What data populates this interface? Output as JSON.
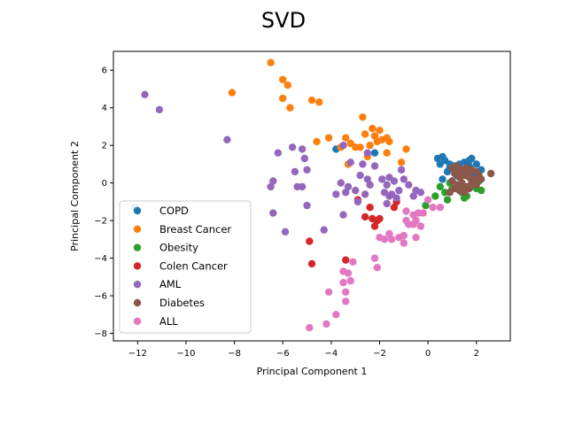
{
  "chart_data": {
    "type": "scatter",
    "title": "SVD",
    "xlabel": "Principal Component 1",
    "ylabel": "Principal Component 2",
    "xlim": [
      -13.0,
      3.4
    ],
    "ylim": [
      -8.4,
      7.0
    ],
    "xticks": [
      -12,
      -10,
      -8,
      -6,
      -4,
      -2,
      0,
      2
    ],
    "yticks": [
      -8,
      -6,
      -4,
      -2,
      0,
      2,
      4,
      6
    ],
    "grid": false,
    "legend_position": "lower-left",
    "series": [
      {
        "name": "COPD",
        "color": "#1f77b4",
        "points": [
          [
            -3.8,
            1.8
          ],
          [
            -2.2,
            1.6
          ],
          [
            0.4,
            1.3
          ],
          [
            0.6,
            1.4
          ],
          [
            0.7,
            1.2
          ],
          [
            0.5,
            1.0
          ],
          [
            0.9,
            1.0
          ],
          [
            1.1,
            0.9
          ],
          [
            1.3,
            1.0
          ],
          [
            1.5,
            1.1
          ],
          [
            1.7,
            1.2
          ],
          [
            1.8,
            1.3
          ],
          [
            2.0,
            1.0
          ],
          [
            2.2,
            0.7
          ],
          [
            1.6,
            0.8
          ],
          [
            0.8,
            0.6
          ],
          [
            1.9,
            0.5
          ],
          [
            2.1,
            0.3
          ],
          [
            1.2,
            0.4
          ],
          [
            1.4,
            0.6
          ],
          [
            0.6,
            0.2
          ],
          [
            1.0,
            0.1
          ],
          [
            1.7,
            0.9
          ],
          [
            1.5,
            0.5
          ],
          [
            0.9,
            0.8
          ]
        ]
      },
      {
        "name": "Breast Cancer",
        "color": "#ff7f0e",
        "points": [
          [
            -6.5,
            6.4
          ],
          [
            -8.1,
            4.8
          ],
          [
            -6.0,
            5.5
          ],
          [
            -5.8,
            5.2
          ],
          [
            -6.0,
            4.5
          ],
          [
            -5.7,
            4.0
          ],
          [
            -4.8,
            4.4
          ],
          [
            -4.5,
            4.3
          ],
          [
            -2.7,
            3.5
          ],
          [
            -2.3,
            2.9
          ],
          [
            -2.0,
            2.8
          ],
          [
            -2.2,
            2.5
          ],
          [
            -1.9,
            2.3
          ],
          [
            -1.7,
            2.4
          ],
          [
            -2.4,
            2.0
          ],
          [
            -2.6,
            2.6
          ],
          [
            -3.4,
            2.4
          ],
          [
            -3.2,
            2.1
          ],
          [
            -3.6,
            1.9
          ],
          [
            -3.0,
            1.9
          ],
          [
            -4.1,
            2.4
          ],
          [
            -4.6,
            2.2
          ],
          [
            -2.8,
            1.9
          ],
          [
            -3.3,
            1.0
          ],
          [
            -1.7,
            1.6
          ],
          [
            -1.6,
            2.2
          ],
          [
            -2.1,
            2.2
          ],
          [
            -0.9,
            1.8
          ],
          [
            -1.1,
            1.1
          ],
          [
            -2.5,
            1.4
          ]
        ]
      },
      {
        "name": "Obesity",
        "color": "#2ca02c",
        "points": [
          [
            0.3,
            -0.7
          ],
          [
            0.7,
            -0.5
          ],
          [
            1.0,
            -0.3
          ],
          [
            1.2,
            -0.1
          ],
          [
            1.4,
            -0.5
          ],
          [
            1.6,
            -0.7
          ],
          [
            1.8,
            -0.2
          ],
          [
            2.0,
            -0.3
          ],
          [
            2.2,
            -0.4
          ],
          [
            0.9,
            0.0
          ],
          [
            0.5,
            -0.2
          ],
          [
            1.5,
            -0.8
          ],
          [
            -0.1,
            -1.2
          ],
          [
            0.8,
            -0.9
          ],
          [
            2.1,
            0.1
          ]
        ]
      },
      {
        "name": "Colen Cancer",
        "color": "#d62728",
        "points": [
          [
            -2.6,
            -1.8
          ],
          [
            -2.3,
            -1.9
          ],
          [
            -2.1,
            -2.0
          ],
          [
            -2.0,
            -1.9
          ],
          [
            -2.4,
            -1.3
          ],
          [
            -2.9,
            -0.9
          ],
          [
            -2.2,
            -2.3
          ],
          [
            -1.4,
            -1.3
          ],
          [
            -1.3,
            -1.0
          ],
          [
            -4.9,
            -3.1
          ],
          [
            -4.8,
            -4.3
          ],
          [
            -3.4,
            -4.1
          ]
        ]
      },
      {
        "name": "AML",
        "color": "#9467bd",
        "points": [
          [
            -11.7,
            4.7
          ],
          [
            -11.1,
            3.9
          ],
          [
            -8.3,
            2.3
          ],
          [
            -12.1,
            -1.3
          ],
          [
            -6.2,
            1.6
          ],
          [
            -5.6,
            1.9
          ],
          [
            -5.2,
            1.8
          ],
          [
            -5.1,
            1.3
          ],
          [
            -5.5,
            0.6
          ],
          [
            -5.0,
            0.7
          ],
          [
            -6.5,
            -0.2
          ],
          [
            -6.4,
            0.1
          ],
          [
            -5.4,
            -0.2
          ],
          [
            -5.2,
            -0.2
          ],
          [
            -6.4,
            -1.6
          ],
          [
            -5.9,
            -2.6
          ],
          [
            -5.0,
            -1.2
          ],
          [
            -4.3,
            -2.5
          ],
          [
            -3.5,
            2.0
          ],
          [
            -3.2,
            1.1
          ],
          [
            -3.6,
            0.0
          ],
          [
            -3.3,
            -0.2
          ],
          [
            -3.8,
            -0.6
          ],
          [
            -3.4,
            -0.5
          ],
          [
            -3.0,
            -0.4
          ],
          [
            -2.8,
            0.4
          ],
          [
            -2.5,
            0.2
          ],
          [
            -2.4,
            -0.1
          ],
          [
            -2.7,
            1.0
          ],
          [
            -2.5,
            1.6
          ],
          [
            -2.2,
            0.9
          ],
          [
            -2.6,
            -0.6
          ],
          [
            -2.9,
            -1.0
          ],
          [
            -3.5,
            -1.7
          ],
          [
            -1.9,
            0.2
          ],
          [
            -1.7,
            -0.1
          ],
          [
            -1.6,
            0.3
          ],
          [
            -1.4,
            0.1
          ],
          [
            -1.8,
            -0.5
          ],
          [
            -1.5,
            -0.6
          ],
          [
            -1.2,
            -0.4
          ],
          [
            -1.0,
            0.2
          ],
          [
            -0.8,
            -0.1
          ],
          [
            -1.1,
            0.7
          ],
          [
            -1.3,
            -0.8
          ],
          [
            -0.5,
            -0.4
          ],
          [
            -0.3,
            -0.5
          ],
          [
            -0.6,
            -0.7
          ],
          [
            -1.7,
            -1.1
          ],
          [
            -1.6,
            -0.7
          ]
        ]
      },
      {
        "name": "Diabetes",
        "color": "#8c564b",
        "points": [
          [
            1.0,
            0.8
          ],
          [
            1.2,
            0.9
          ],
          [
            1.4,
            0.7
          ],
          [
            1.6,
            0.8
          ],
          [
            1.8,
            0.7
          ],
          [
            2.0,
            0.6
          ],
          [
            1.1,
            0.5
          ],
          [
            1.3,
            0.3
          ],
          [
            1.5,
            0.4
          ],
          [
            1.7,
            0.3
          ],
          [
            1.9,
            0.2
          ],
          [
            2.1,
            0.4
          ],
          [
            1.0,
            0.1
          ],
          [
            1.2,
            -0.1
          ],
          [
            1.4,
            0.0
          ],
          [
            1.6,
            -0.2
          ],
          [
            1.8,
            0.0
          ],
          [
            2.0,
            -0.1
          ],
          [
            1.1,
            -0.3
          ],
          [
            1.3,
            -0.4
          ],
          [
            1.5,
            -0.5
          ],
          [
            1.7,
            -0.3
          ],
          [
            2.2,
            0.2
          ],
          [
            2.6,
            0.5
          ],
          [
            0.9,
            -0.5
          ],
          [
            1.2,
            0.6
          ],
          [
            1.6,
            0.5
          ],
          [
            1.4,
            -0.2
          ]
        ]
      },
      {
        "name": "ALL",
        "color": "#e377c2",
        "points": [
          [
            -0.9,
            -1.5
          ],
          [
            -0.6,
            -1.7
          ],
          [
            -0.4,
            -1.6
          ],
          [
            -0.2,
            -1.6
          ],
          [
            -0.5,
            -2.0
          ],
          [
            -0.8,
            -2.2
          ],
          [
            -0.6,
            -2.2
          ],
          [
            -0.3,
            -2.3
          ],
          [
            -1.0,
            -2.8
          ],
          [
            -1.2,
            -2.9
          ],
          [
            -1.0,
            -3.2
          ],
          [
            -0.5,
            -2.9
          ],
          [
            -1.6,
            -2.7
          ],
          [
            -1.8,
            -3.0
          ],
          [
            -1.5,
            -3.0
          ],
          [
            -2.0,
            -2.9
          ],
          [
            -0.9,
            -2.0
          ],
          [
            0.2,
            -1.3
          ],
          [
            0.5,
            -1.3
          ],
          [
            0.0,
            -0.9
          ],
          [
            -2.2,
            -4.0
          ],
          [
            -2.1,
            -4.5
          ],
          [
            -3.1,
            -4.2
          ],
          [
            -3.5,
            -4.7
          ],
          [
            -3.3,
            -4.8
          ],
          [
            -3.5,
            -5.3
          ],
          [
            -3.2,
            -5.2
          ],
          [
            -4.1,
            -5.8
          ],
          [
            -3.4,
            -5.8
          ],
          [
            -3.4,
            -6.3
          ],
          [
            -3.8,
            -7.0
          ],
          [
            -4.2,
            -7.5
          ],
          [
            -4.9,
            -7.7
          ]
        ]
      }
    ]
  }
}
